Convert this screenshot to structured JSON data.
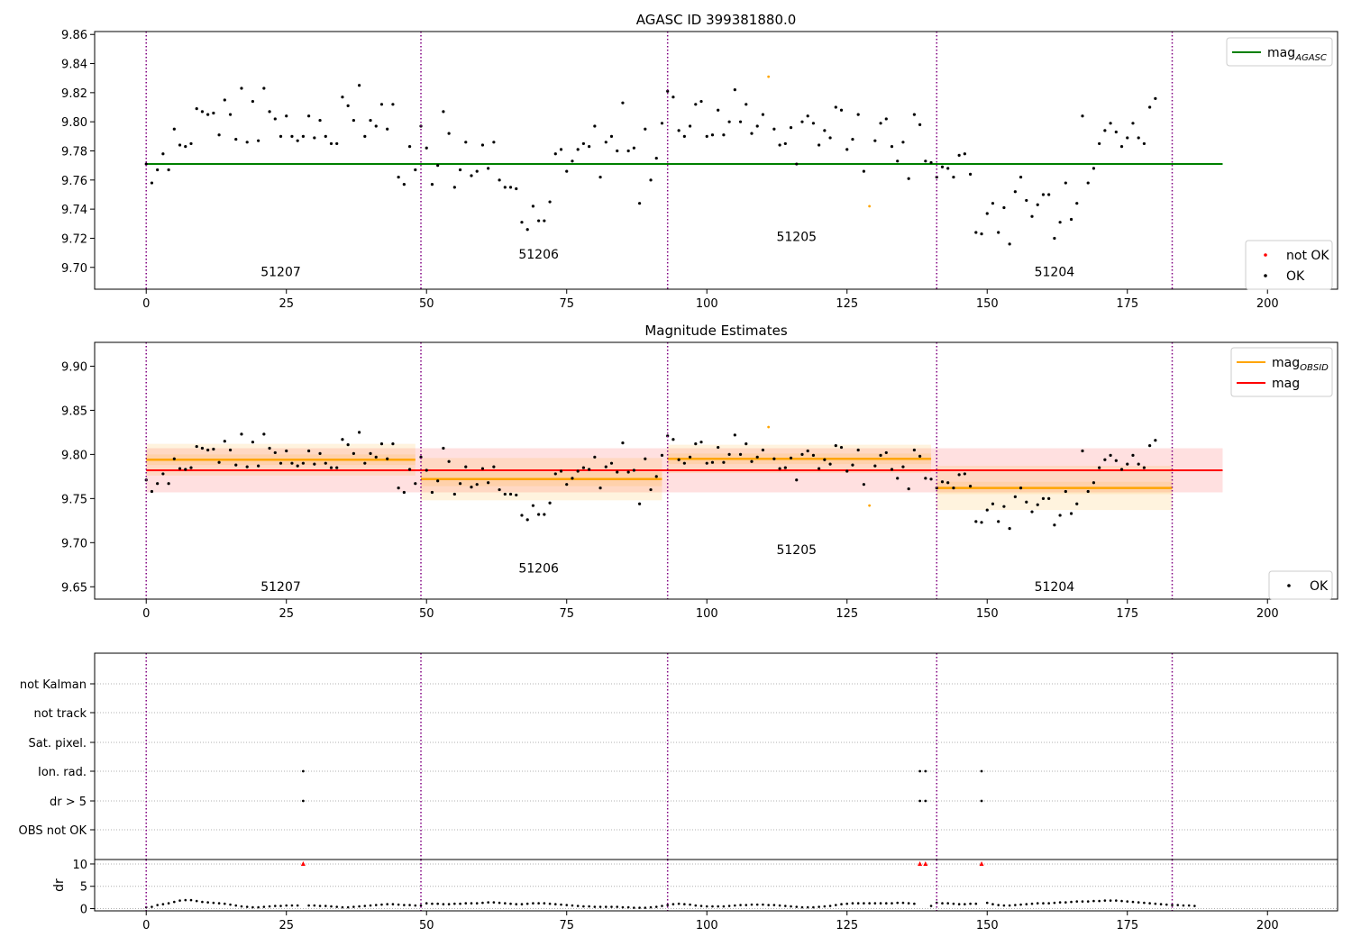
{
  "panel1": {
    "title": "AGASC ID 399381880.0",
    "ylim": [
      9.685,
      9.862
    ],
    "yticks": [
      9.7,
      9.72,
      9.74,
      9.76,
      9.78,
      9.8,
      9.82,
      9.84,
      9.86
    ],
    "ytick_labels": [
      "9.70",
      "9.72",
      "9.74",
      "9.76",
      "9.78",
      "9.80",
      "9.82",
      "9.84",
      "9.86"
    ],
    "agasc_mag": 9.771,
    "agasc_xrange": [
      0,
      192
    ],
    "obsid_labels": [
      {
        "text": "51207",
        "x": 24,
        "y": 9.694
      },
      {
        "text": "51206",
        "x": 70,
        "y": 9.706
      },
      {
        "text": "51205",
        "x": 116,
        "y": 9.718
      },
      {
        "text": "51204",
        "x": 162,
        "y": 9.694
      }
    ],
    "legend_top": [
      {
        "label": "mag",
        "sub": "AGASC",
        "color": "#008000"
      }
    ],
    "legend_bottom": [
      {
        "label": "not OK",
        "color": "#ff0000"
      },
      {
        "label": "OK",
        "color": "#000000"
      }
    ]
  },
  "panel2": {
    "title": "Magnitude Estimates",
    "ylim": [
      9.636,
      9.927
    ],
    "yticks": [
      9.65,
      9.7,
      9.75,
      9.8,
      9.85,
      9.9
    ],
    "ytick_labels": [
      "9.65",
      "9.70",
      "9.75",
      "9.80",
      "9.85",
      "9.90"
    ],
    "mag": 9.782,
    "mag_band": [
      9.757,
      9.807
    ],
    "mag_xrange": [
      0,
      192
    ],
    "obsid_segments": [
      {
        "x0": 0,
        "x1": 48,
        "mag": 9.794,
        "band": [
          9.776,
          9.812
        ],
        "inner": [
          9.788,
          9.8
        ]
      },
      {
        "x0": 49,
        "x1": 92,
        "mag": 9.772,
        "band": [
          9.748,
          9.796
        ],
        "inner": [
          9.764,
          9.78
        ]
      },
      {
        "x0": 93,
        "x1": 140,
        "mag": 9.795,
        "band": [
          9.779,
          9.811
        ],
        "inner": [
          9.789,
          9.801
        ]
      },
      {
        "x0": 141,
        "x1": 183,
        "mag": 9.762,
        "band": [
          9.737,
          9.787
        ],
        "inner": [
          9.755,
          9.769
        ]
      }
    ],
    "obsid_labels": [
      {
        "text": "51207",
        "x": 24,
        "y": 9.645
      },
      {
        "text": "51206",
        "x": 70,
        "y": 9.666
      },
      {
        "text": "51205",
        "x": 116,
        "y": 9.687
      },
      {
        "text": "51204",
        "x": 162,
        "y": 9.645
      }
    ],
    "legend_top": [
      {
        "label": "mag",
        "sub": "OBSID",
        "color": "#ffa500"
      },
      {
        "label": "mag",
        "sub": "",
        "color": "#ff0000"
      }
    ],
    "legend_bottom": [
      {
        "label": "OK",
        "color": "#000000"
      }
    ]
  },
  "panel3": {
    "flag_labels": [
      "not Kalman",
      "not track",
      "Sat. pixel.",
      "Ion. rad.",
      "dr > 5",
      "OBS not OK"
    ],
    "flags": {
      "Ion. rad.": [
        28,
        138,
        139,
        149
      ],
      "dr > 5": [
        28,
        138,
        139,
        149
      ]
    }
  },
  "panel4": {
    "ylabel": "dr",
    "ylim": [
      -0.5,
      11
    ],
    "yticks": [
      0,
      5,
      10
    ],
    "ytick_labels": [
      "0",
      "5",
      "10"
    ],
    "flagged": [
      28,
      138,
      139,
      149
    ],
    "flagged_value": 10
  },
  "axes": {
    "xlim": [
      -9.2,
      212.5
    ],
    "xticks": [
      0,
      25,
      50,
      75,
      100,
      125,
      150,
      175,
      200
    ],
    "xtick_labels": [
      "0",
      "25",
      "50",
      "75",
      "100",
      "125",
      "150",
      "175",
      "200"
    ],
    "obsid_boundaries": [
      0,
      49,
      93,
      141,
      183
    ]
  },
  "chart_data": {
    "type": "scatter",
    "x_index": "sample index 0-183",
    "mag_values": [
      9.771,
      9.758,
      9.767,
      9.778,
      9.767,
      9.795,
      9.784,
      9.783,
      9.785,
      9.809,
      9.807,
      9.805,
      9.806,
      9.791,
      9.815,
      9.805,
      9.788,
      9.823,
      9.786,
      9.814,
      9.787,
      9.823,
      9.807,
      9.802,
      9.79,
      9.804,
      9.79,
      9.787,
      9.79,
      9.804,
      9.789,
      9.801,
      9.79,
      9.785,
      9.785,
      9.817,
      9.811,
      9.801,
      9.825,
      9.79,
      9.801,
      9.797,
      9.812,
      9.795,
      9.812,
      9.762,
      9.757,
      9.783,
      9.767,
      9.797,
      9.782,
      9.757,
      9.77,
      9.807,
      9.792,
      9.755,
      9.767,
      9.786,
      9.763,
      9.766,
      9.784,
      9.768,
      9.786,
      9.76,
      9.755,
      9.755,
      9.754,
      9.731,
      9.726,
      9.742,
      9.732,
      9.732,
      9.745,
      9.778,
      9.781,
      9.766,
      9.773,
      9.781,
      9.785,
      9.783,
      9.797,
      9.762,
      9.786,
      9.79,
      9.78,
      9.813,
      9.78,
      9.782,
      9.744,
      9.795,
      9.76,
      9.775,
      9.799,
      9.821,
      9.817,
      9.794,
      9.79,
      9.797,
      9.812,
      9.814,
      9.79,
      9.791,
      9.808,
      9.791,
      9.8,
      9.822,
      9.8,
      9.812,
      9.792,
      9.797,
      9.805,
      9.831,
      9.795,
      9.784,
      9.785,
      9.796,
      9.771,
      9.8,
      9.804,
      9.799,
      9.784,
      9.794,
      9.789,
      9.81,
      9.808,
      9.781,
      9.788,
      9.805,
      9.766,
      9.742,
      9.787,
      9.799,
      9.802,
      9.783,
      9.773,
      9.786,
      9.761,
      9.805,
      9.798,
      9.773,
      9.772,
      9.762,
      9.769,
      9.768,
      9.762,
      9.777,
      9.778,
      9.764,
      9.724,
      9.723,
      9.737,
      9.744,
      9.724,
      9.741,
      9.716,
      9.752,
      9.762,
      9.746,
      9.735,
      9.743,
      9.75,
      9.75,
      9.72,
      9.731,
      9.758,
      9.733,
      9.744,
      9.804,
      9.758,
      9.768,
      9.785,
      9.794,
      9.799,
      9.793,
      9.783,
      9.789,
      9.799,
      9.789,
      9.785,
      9.81,
      9.816
    ],
    "highlighted_points": [
      111,
      129
    ],
    "dr_values": [
      0.3,
      0.4,
      0.8,
      1.0,
      1.2,
      1.5,
      1.8,
      1.9,
      1.9,
      1.7,
      1.5,
      1.4,
      1.3,
      1.2,
      1.1,
      0.9,
      0.7,
      0.5,
      0.4,
      0.3,
      0.3,
      0.4,
      0.5,
      0.6,
      0.6,
      0.7,
      0.7,
      0.7,
      10,
      0.7,
      0.7,
      0.6,
      0.6,
      0.5,
      0.4,
      0.3,
      0.3,
      0.4,
      0.5,
      0.6,
      0.7,
      0.8,
      0.9,
      1.0,
      1.0,
      0.9,
      0.8,
      0.8,
      0.7,
      0.7,
      1.2,
      1.1,
      1.1,
      1.0,
      1.0,
      1.1,
      1.1,
      1.2,
      1.2,
      1.2,
      1.3,
      1.4,
      1.4,
      1.3,
      1.2,
      1.1,
      1.0,
      1.0,
      1.1,
      1.2,
      1.2,
      1.2,
      1.1,
      1.0,
      0.9,
      0.8,
      0.7,
      0.6,
      0.5,
      0.5,
      0.4,
      0.4,
      0.4,
      0.4,
      0.4,
      0.3,
      0.3,
      0.2,
      0.2,
      0.2,
      0.3,
      0.4,
      0.6,
      0.8,
      1.0,
      1.1,
      1.0,
      0.9,
      0.7,
      0.6,
      0.5,
      0.5,
      0.5,
      0.5,
      0.6,
      0.7,
      0.8,
      0.8,
      0.9,
      0.9,
      0.9,
      0.8,
      0.8,
      0.7,
      0.6,
      0.5,
      0.4,
      0.3,
      0.3,
      0.3,
      0.4,
      0.5,
      0.6,
      0.8,
      1.0,
      1.1,
      1.2,
      1.2,
      1.2,
      1.2,
      1.2,
      1.2,
      1.2,
      1.2,
      1.3,
      1.3,
      1.2,
      1.1,
      10,
      10,
      0.6,
      1.3,
      1.2,
      1.2,
      1.1,
      1.0,
      1.0,
      1.1,
      1.1,
      10,
      1.3,
      1.0,
      0.8,
      0.7,
      0.7,
      0.8,
      0.9,
      1.0,
      1.1,
      1.2,
      1.2,
      1.2,
      1.3,
      1.4,
      1.4,
      1.5,
      1.6,
      1.6,
      1.6,
      1.7,
      1.7,
      1.8,
      1.8,
      1.8,
      1.7,
      1.6,
      1.5,
      1.4,
      1.3,
      1.2,
      1.1,
      1.0,
      0.9,
      0.8,
      0.8,
      0.7,
      0.7,
      0.6
    ]
  }
}
